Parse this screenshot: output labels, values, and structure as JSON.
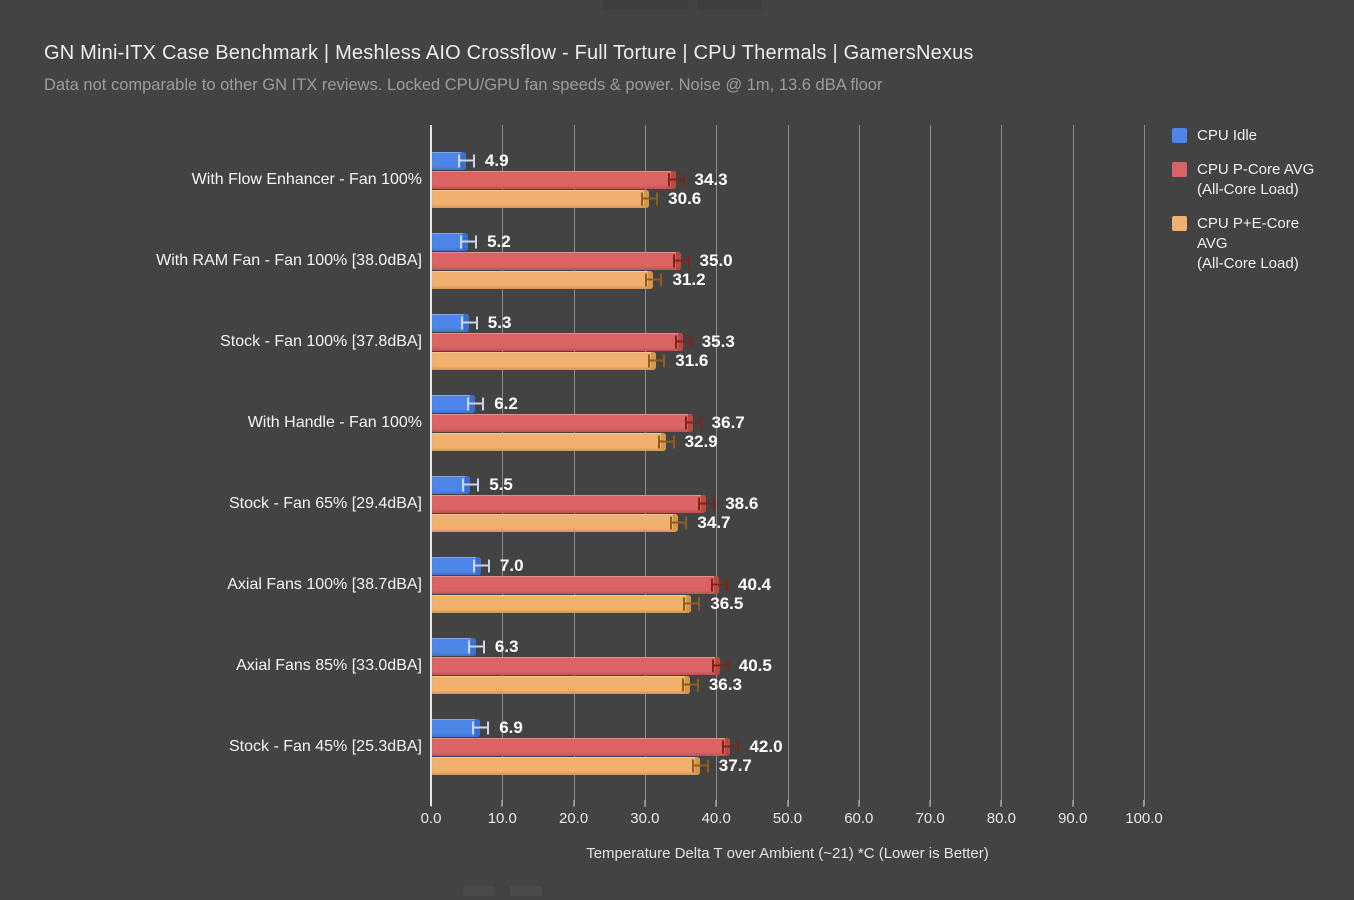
{
  "header": {
    "title": "GN Mini-ITX Case Benchmark | Meshless AIO Crossflow - Full Torture | CPU Thermals | GamersNexus",
    "subtitle": "Data not comparable to other GN ITX reviews. Locked CPU/GPU fan speeds & power. Noise @ 1m, 13.6 dBA floor"
  },
  "chart_data": {
    "type": "bar",
    "orientation": "horizontal",
    "title": "GN Mini-ITX Case Benchmark | Meshless AIO Crossflow - Full Torture | CPU Thermals | GamersNexus",
    "subtitle": "Data not comparable to other GN ITX reviews. Locked CPU/GPU fan speeds & power. Noise @ 1m, 13.6 dBA floor",
    "xlabel": "Temperature Delta T over Ambient (~21) *C (Lower is Better)",
    "xlim": [
      0,
      100
    ],
    "xticks": [
      0,
      10,
      20,
      30,
      40,
      50,
      60,
      70,
      80,
      90,
      100
    ],
    "grid": "vertical-gridlines",
    "legend_position": "top-right",
    "value_label_decimals": 1,
    "error_bars": true,
    "categories": [
      "With Flow Enhancer - Fan 100%",
      "With RAM Fan - Fan 100% [38.0dBA]",
      "Stock - Fan 100% [37.8dBA]",
      "With Handle - Fan 100%",
      "Stock - Fan 65% [29.4dBA]",
      "Axial Fans 100% [38.7dBA]",
      "Axial Fans 85% [33.0dBA]",
      "Stock - Fan 45% [25.3dBA]"
    ],
    "series": [
      {
        "name": "CPU Idle",
        "legend_lines": [
          "CPU Idle"
        ],
        "color": "#4d86e8",
        "cap_color": "#3d6ecd",
        "error_color": "#c9d5ec",
        "values": [
          4.9,
          5.2,
          5.3,
          6.2,
          5.5,
          7.0,
          6.3,
          6.9
        ]
      },
      {
        "name": "CPU P-Core AVG (All-Core Load)",
        "legend_lines": [
          "CPU P-Core AVG",
          "(All-Core Load)"
        ],
        "color": "#db6363",
        "cap_color": "#b84a42",
        "error_color": "#7d241b",
        "values": [
          34.3,
          35.0,
          35.3,
          36.7,
          38.6,
          40.4,
          40.5,
          42.0
        ]
      },
      {
        "name": "CPU P+E-Core AVG (All-Core Load)",
        "legend_lines": [
          "CPU P+E-Core",
          "AVG",
          "(All-Core Load)"
        ],
        "color": "#f2b06e",
        "cap_color": "#d2964d",
        "error_color": "#8f5d1d",
        "values": [
          30.6,
          31.2,
          31.6,
          32.9,
          34.7,
          36.5,
          36.3,
          37.7
        ]
      }
    ]
  },
  "colors": {
    "background": "#434343",
    "title": "#ececec",
    "subtitle": "#9c9c9c",
    "category_label": "#f5f5f5",
    "gridline": "#9e9e9e",
    "axis_line": "#e6e6e6",
    "value_label": "#ffffff"
  }
}
